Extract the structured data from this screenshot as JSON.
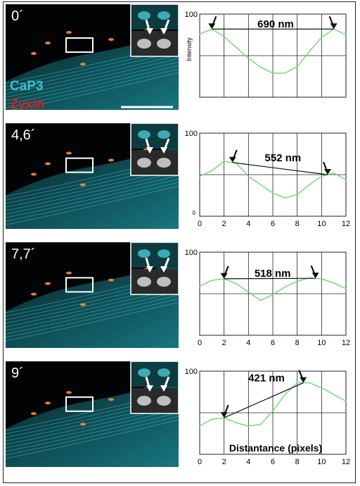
{
  "figure": {
    "legend": {
      "label_a": "CaP3",
      "label_b": "Zyxin",
      "color_a": "#39c3d0",
      "color_b": "#e01a1a"
    },
    "panels": [
      {
        "time": "0´",
        "distance_label": "690 nm"
      },
      {
        "time": "4,6´",
        "distance_label": "552 nm"
      },
      {
        "time": "7,7´",
        "distance_label": "518 nm"
      },
      {
        "time": "9´",
        "distance_label": "421 nm"
      }
    ],
    "plot_style": {
      "line_color": "#6edc6e",
      "grid_color": "#222222",
      "arrow_color": "#111111"
    }
  },
  "chart_data": [
    {
      "type": "line",
      "x": [
        0,
        1,
        2,
        3,
        4,
        5,
        6,
        7,
        8,
        9,
        10,
        11,
        12
      ],
      "series": [
        {
          "values": [
            76,
            82,
            73,
            60,
            47,
            36,
            29,
            29,
            37,
            55,
            72,
            82,
            75
          ]
        }
      ],
      "xlim": [
        0,
        12
      ],
      "ylim": [
        0,
        100
      ],
      "ylabel": "Intensity",
      "yticks_shown": [
        "100"
      ],
      "xticks_shown": [],
      "annotation": {
        "text": "690 nm",
        "from_x": 1,
        "to_x": 11
      }
    },
    {
      "type": "line",
      "x": [
        0,
        1,
        2,
        3,
        4,
        5,
        6,
        7,
        8,
        9,
        10,
        11,
        12
      ],
      "series": [
        {
          "values": [
            48,
            55,
            66,
            64,
            48,
            38,
            28,
            22,
            26,
            38,
            48,
            52,
            44
          ]
        }
      ],
      "xlim": [
        0,
        12
      ],
      "ylim": [
        0,
        100
      ],
      "yticks_shown": [
        "100",
        "0"
      ],
      "xticks_shown": [
        "0",
        "2",
        "4",
        "6",
        "8",
        "10",
        "12"
      ],
      "annotation": {
        "text": "552 nm",
        "from_x": 2.7,
        "to_x": 10.5
      }
    },
    {
      "type": "line",
      "x": [
        0,
        1,
        2,
        3,
        4,
        5,
        6,
        7,
        8,
        9,
        10,
        11,
        12
      ],
      "series": [
        {
          "values": [
            59,
            66,
            68,
            62,
            52,
            42,
            49,
            58,
            65,
            69,
            68,
            63,
            56
          ]
        }
      ],
      "xlim": [
        0,
        12
      ],
      "ylim": [
        0,
        100
      ],
      "yticks_shown": [
        "100"
      ],
      "xticks_shown": [
        "0",
        "2",
        "4",
        "6",
        "8",
        "10",
        "12"
      ],
      "annotation": {
        "text": "518 nm",
        "from_x": 2,
        "to_x": 9.5
      }
    },
    {
      "type": "line",
      "x": [
        0,
        1,
        2,
        3,
        4,
        5,
        6,
        7,
        8,
        9,
        10,
        11,
        12
      ],
      "series": [
        {
          "values": [
            34,
            42,
            44,
            38,
            34,
            36,
            52,
            72,
            86,
            86,
            80,
            72,
            64
          ]
        }
      ],
      "xlim": [
        0,
        12
      ],
      "ylim": [
        0,
        100
      ],
      "xlabel": "Distantance (pixels)",
      "yticks_shown": [
        "100"
      ],
      "xticks_shown": [
        "0",
        "2",
        "4",
        "6",
        "8",
        "10",
        "12"
      ],
      "annotation": {
        "text": "421 nm",
        "from_x": 2,
        "to_x": 8.5
      }
    }
  ]
}
